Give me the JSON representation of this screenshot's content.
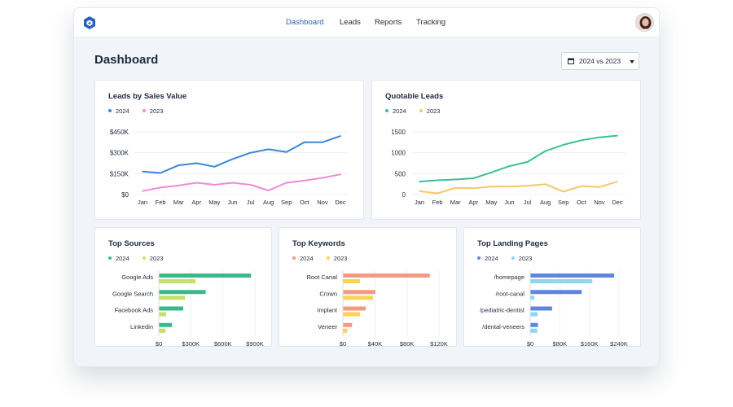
{
  "nav": {
    "items": [
      {
        "label": "Dashboard",
        "active": true
      },
      {
        "label": "Leads",
        "active": false
      },
      {
        "label": "Reports",
        "active": false
      },
      {
        "label": "Tracking",
        "active": false
      }
    ]
  },
  "header": {
    "title": "Dashboard",
    "date_range": "2024 vs 2023"
  },
  "colors": {
    "accent": "#2a5fc4",
    "background": "#f1f5fa"
  },
  "icons": {
    "logo": "hexagon-logo-icon",
    "calendar": "calendar-icon",
    "caret": "caret-down-icon",
    "avatar": "user-avatar"
  },
  "chart_data": [
    {
      "id": "leads",
      "type": "line",
      "title": "Leads by Sales Value",
      "categories": [
        "Jan",
        "Feb",
        "Mar",
        "Apr",
        "May",
        "Jun",
        "Jul",
        "Aug",
        "Sep",
        "Oct",
        "Nov",
        "Dec"
      ],
      "series": [
        {
          "name": "2024",
          "color": "#3a86dd",
          "values": [
            165,
            155,
            210,
            225,
            200,
            255,
            300,
            325,
            305,
            375,
            375,
            420
          ]
        },
        {
          "name": "2023",
          "color": "#f08ad8",
          "values": [
            25,
            50,
            65,
            85,
            70,
            85,
            70,
            30,
            85,
            100,
            120,
            145
          ]
        }
      ],
      "yticks": [
        "$0",
        "$150K",
        "$300K",
        "$450K"
      ],
      "ylim": [
        0,
        450
      ],
      "grid": true,
      "legend": "top-left"
    },
    {
      "id": "quotable",
      "type": "line",
      "title": "Quotable Leads",
      "categories": [
        "Jan",
        "Feb",
        "Mar",
        "Apr",
        "May",
        "Jun",
        "Jul",
        "Aug",
        "Sep",
        "Oct",
        "Nov",
        "Dec"
      ],
      "series": [
        {
          "name": "2024",
          "color": "#3cc090",
          "values": [
            310,
            340,
            360,
            390,
            530,
            680,
            780,
            1040,
            1190,
            1300,
            1370,
            1410
          ]
        },
        {
          "name": "2023",
          "color": "#f6c768",
          "values": [
            80,
            30,
            160,
            150,
            190,
            190,
            210,
            250,
            70,
            200,
            180,
            310
          ]
        }
      ],
      "yticks": [
        "0",
        "500",
        "1000",
        "1500"
      ],
      "ylim": [
        0,
        1500
      ],
      "grid": true,
      "legend": "top-left"
    },
    {
      "id": "sources",
      "type": "bar",
      "orientation": "horizontal",
      "title": "Top Sources",
      "categories": [
        "Google Ads",
        "Google Search",
        "Facebook Ads",
        "Linkedin"
      ],
      "series": [
        {
          "name": "2024",
          "color": "#3ab88a",
          "values": [
            860,
            435,
            225,
            120
          ]
        },
        {
          "name": "2023",
          "color": "#c5e06a",
          "values": [
            340,
            240,
            65,
            60
          ]
        }
      ],
      "xticks": [
        "$0",
        "$300K",
        "$600K",
        "$900K"
      ],
      "xlim": [
        0,
        900
      ],
      "grid": true,
      "legend": "top-left"
    },
    {
      "id": "keywords",
      "type": "bar",
      "orientation": "horizontal",
      "title": "Top Keywords",
      "categories": [
        "Root Canal",
        "Crown",
        "Implant",
        "Veneer"
      ],
      "series": [
        {
          "name": "2024",
          "color": "#f39a80",
          "values": [
            108,
            40,
            28,
            11
          ]
        },
        {
          "name": "2023",
          "color": "#fbd258",
          "values": [
            21,
            37,
            21,
            5
          ]
        }
      ],
      "xticks": [
        "$0",
        "$40K",
        "$80K",
        "$120K"
      ],
      "xlim": [
        0,
        120
      ],
      "grid": true,
      "legend": "top-left"
    },
    {
      "id": "landing",
      "type": "bar",
      "orientation": "horizontal",
      "title": "Top Landing Pages",
      "categories": [
        "/homepage",
        "/root-canal",
        "/pediatric-dentist",
        "/dental-veneers"
      ],
      "series": [
        {
          "name": "2024",
          "color": "#5f86dc",
          "values": [
            226,
            138,
            58,
            20
          ]
        },
        {
          "name": "2023",
          "color": "#8fd4f2",
          "values": [
            167,
            10,
            19,
            18
          ]
        }
      ],
      "xticks": [
        "$0",
        "$80K",
        "$160K",
        "$240K"
      ],
      "xlim": [
        0,
        240
      ],
      "grid": true,
      "legend": "top-left"
    }
  ]
}
